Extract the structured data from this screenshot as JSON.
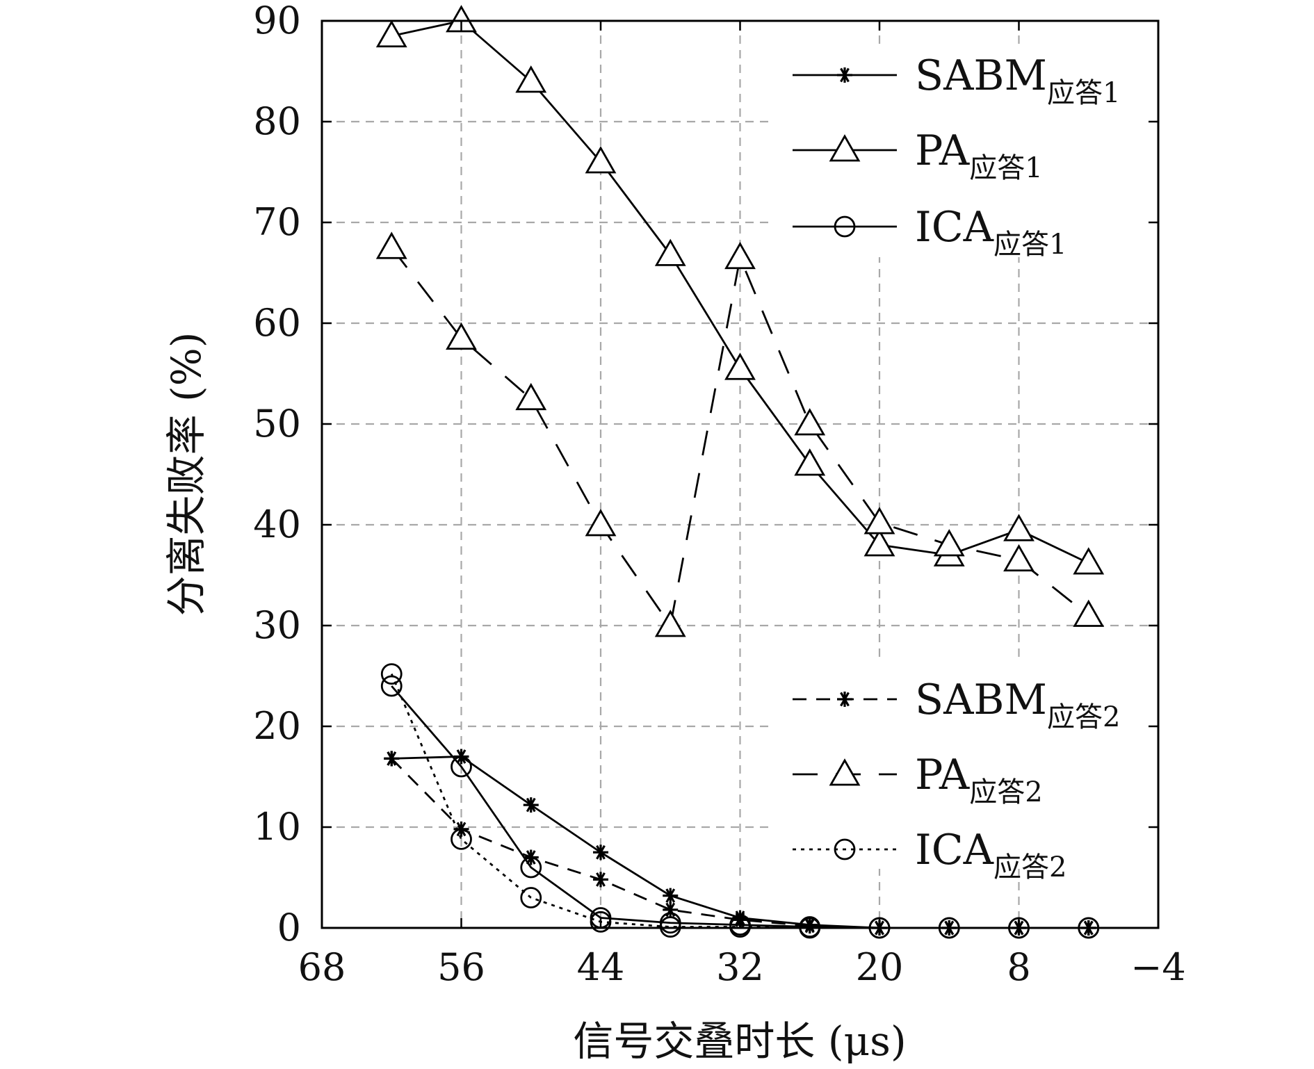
{
  "chart_data": {
    "type": "line",
    "xlabel": "信号交叠时长 (μs)",
    "ylabel": "分离失败率 (%)",
    "xlim": [
      68,
      -4
    ],
    "ylim": [
      0,
      90
    ],
    "xticks": [
      68,
      56,
      44,
      32,
      20,
      8,
      -4
    ],
    "xtick_labels": [
      "68",
      "56",
      "44",
      "32",
      "20",
      "8",
      "−4"
    ],
    "yticks": [
      0,
      10,
      20,
      30,
      40,
      50,
      60,
      70,
      80,
      90
    ],
    "ytick_labels": [
      "0",
      "10",
      "20",
      "30",
      "40",
      "50",
      "60",
      "70",
      "80",
      "90"
    ],
    "grid": true,
    "x": [
      62,
      56,
      50,
      44,
      38,
      32,
      26,
      20,
      14,
      8,
      2
    ],
    "series": [
      {
        "name": "SABM",
        "name_sub": "应答1",
        "marker": "star",
        "line": "solid",
        "values": [
          16.8,
          17.0,
          12.2,
          7.5,
          3.2,
          1.0,
          0.3,
          0,
          0,
          0,
          0
        ]
      },
      {
        "name": "PA",
        "name_sub": "应答1",
        "marker": "triangle",
        "line": "solid",
        "values": [
          88.5,
          90.0,
          84.0,
          76.0,
          66.8,
          55.5,
          46.0,
          38.0,
          37.0,
          39.5,
          36.2
        ]
      },
      {
        "name": "ICA",
        "name_sub": "应答1",
        "marker": "circle",
        "line": "solid",
        "values": [
          24.0,
          16.0,
          6.0,
          1.0,
          0.5,
          0.3,
          0.1,
          0,
          0,
          0,
          0
        ]
      },
      {
        "name": "SABM",
        "name_sub": "应答2",
        "marker": "star",
        "line": "dashed",
        "values": [
          16.8,
          9.8,
          7.0,
          4.8,
          1.8,
          0.8,
          0.2,
          0,
          0,
          0,
          0
        ]
      },
      {
        "name": "PA",
        "name_sub": "应答2",
        "marker": "triangle",
        "line": "longdash",
        "values": [
          67.5,
          58.5,
          52.5,
          40.0,
          30.0,
          66.5,
          50.0,
          40.2,
          38.0,
          36.5,
          31.0
        ]
      },
      {
        "name": "ICA",
        "name_sub": "应答2",
        "marker": "circle",
        "line": "dotted",
        "values": [
          25.2,
          8.8,
          3.0,
          0.6,
          0.1,
          0.1,
          0,
          0,
          0,
          0,
          0
        ]
      }
    ],
    "legend_placement": [
      "top-right",
      "bottom-right"
    ]
  }
}
